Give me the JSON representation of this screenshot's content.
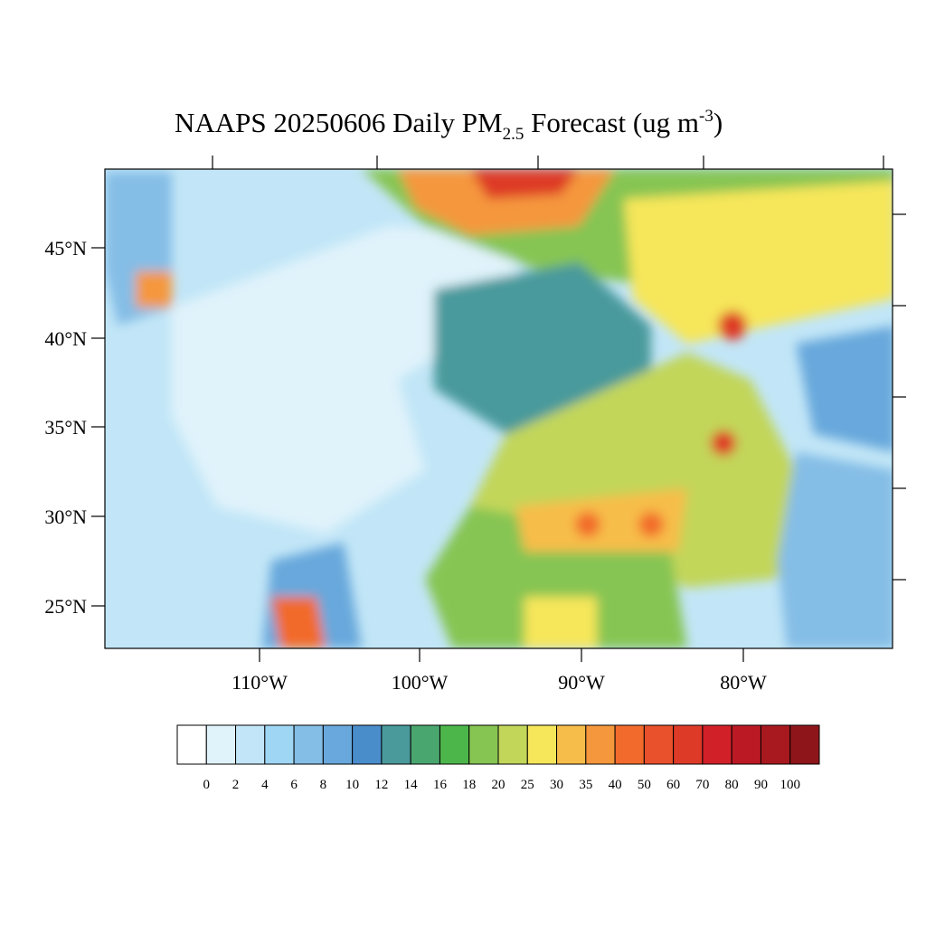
{
  "map": {
    "title": {
      "main": "NAAPS 20250606 Daily PM",
      "sub": "2.5",
      "rest": " Forecast (ug m",
      "sup": "-3",
      "end": ")"
    },
    "lat_labels": [
      "45°N",
      "40°N",
      "35°N",
      "30°N",
      "25°N"
    ],
    "lon_labels": [
      "110°W",
      "100°W",
      "90°W",
      "80°W"
    ],
    "colorbar": {
      "labels": [
        0,
        2,
        4,
        6,
        8,
        10,
        12,
        14,
        16,
        18,
        20,
        25,
        30,
        35,
        40,
        50,
        60,
        70,
        80,
        90,
        100
      ],
      "colors": [
        "#ffffff",
        "#e0f3fb",
        "#c2e6f7",
        "#9fd6f4",
        "#84bde6",
        "#68a8dc",
        "#4a8dcb",
        "#4a9a9c",
        "#4aa66f",
        "#4cb64a",
        "#86c552",
        "#c2d65a",
        "#f6e65a",
        "#f7bd4a",
        "#f5973c",
        "#f26b2c",
        "#e9502c",
        "#de3a28",
        "#d22029",
        "#bb1a24",
        "#a8191f",
        "#8e161a"
      ]
    }
  }
}
